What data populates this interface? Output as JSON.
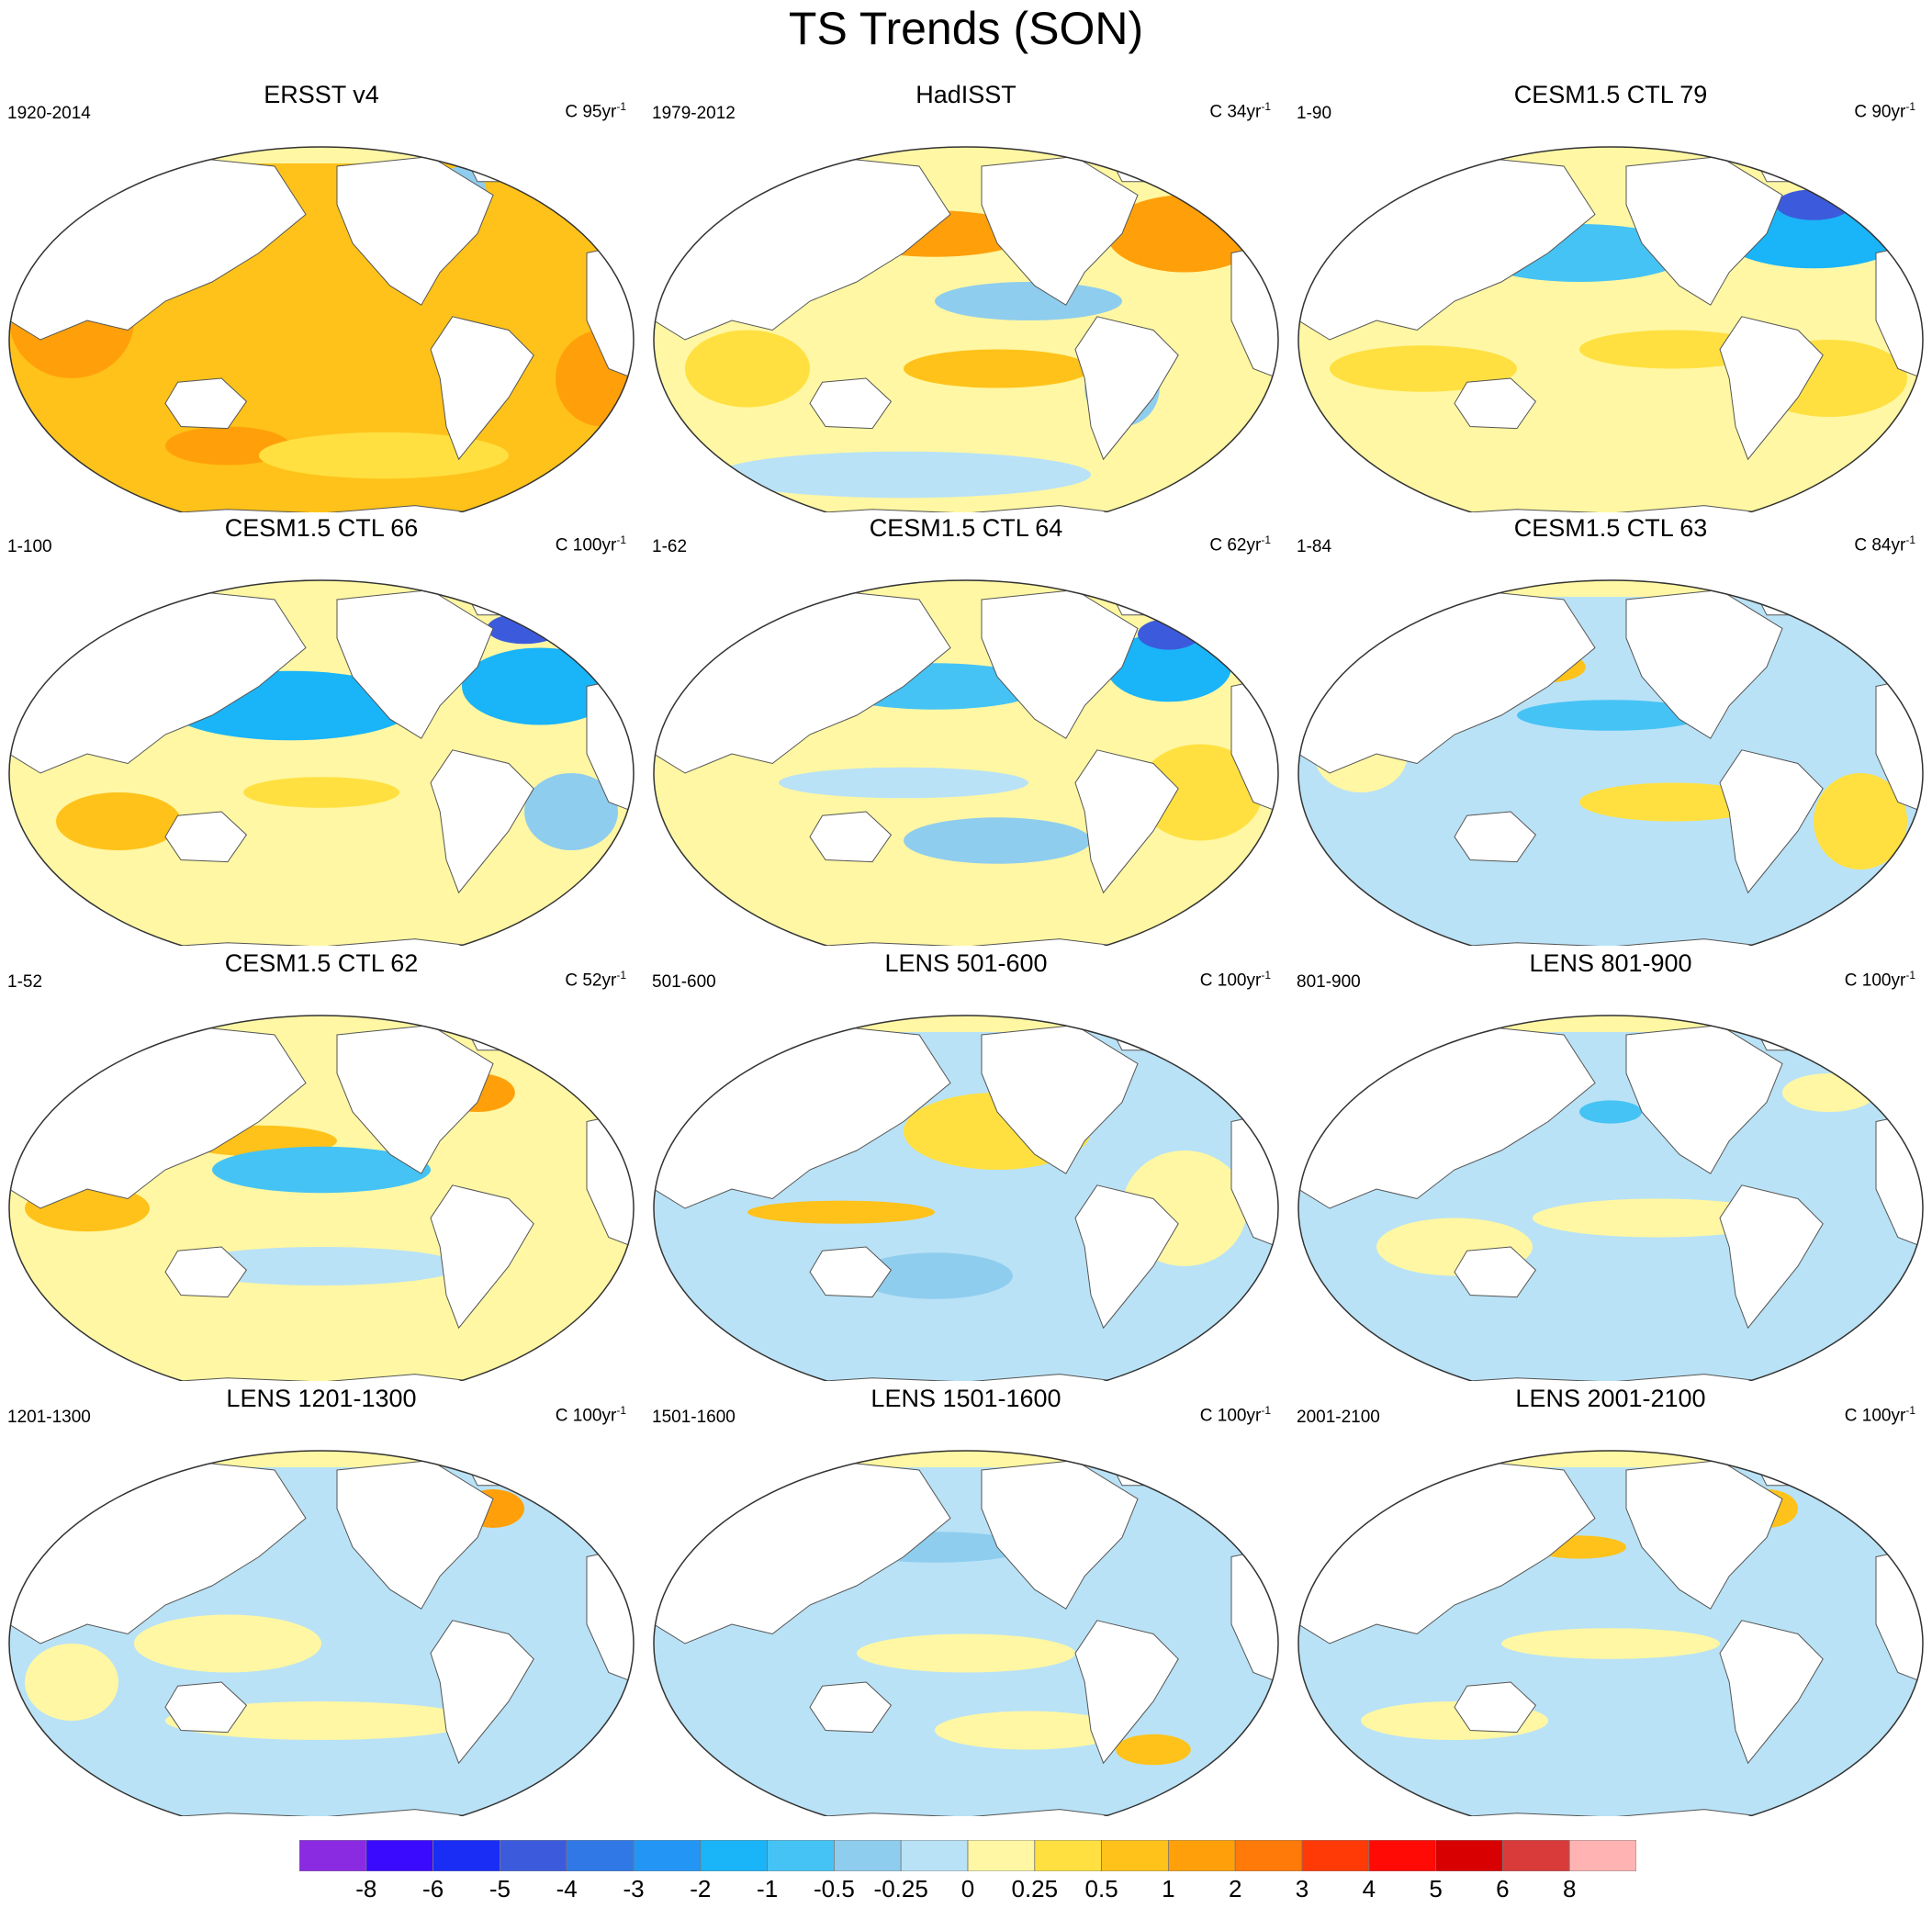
{
  "title": "TS Trends (SON)",
  "panels": [
    {
      "title": "ERSST v4",
      "period": "1920-2014",
      "units_prefix": "C 95yr",
      "units_exp": "-1",
      "scheme": 0
    },
    {
      "title": "HadISST",
      "period": "1979-2012",
      "units_prefix": "C 34yr",
      "units_exp": "-1",
      "scheme": 1
    },
    {
      "title": "CESM1.5 CTL 79",
      "period": "1-90",
      "units_prefix": "C 90yr",
      "units_exp": "-1",
      "scheme": 2
    },
    {
      "title": "CESM1.5 CTL 66",
      "period": "1-100",
      "units_prefix": "C 100yr",
      "units_exp": "-1",
      "scheme": 3
    },
    {
      "title": "CESM1.5 CTL 64",
      "period": "1-62",
      "units_prefix": "C 62yr",
      "units_exp": "-1",
      "scheme": 4
    },
    {
      "title": "CESM1.5 CTL 63",
      "period": "1-84",
      "units_prefix": "C 84yr",
      "units_exp": "-1",
      "scheme": 5
    },
    {
      "title": "CESM1.5 CTL 62",
      "period": "1-52",
      "units_prefix": "C 52yr",
      "units_exp": "-1",
      "scheme": 6
    },
    {
      "title": "LENS 501-600",
      "period": "501-600",
      "units_prefix": "C 100yr",
      "units_exp": "-1",
      "scheme": 7
    },
    {
      "title": "LENS 801-900",
      "period": "801-900",
      "units_prefix": "C 100yr",
      "units_exp": "-1",
      "scheme": 8
    },
    {
      "title": "LENS 1201-1300",
      "period": "1201-1300",
      "units_prefix": "C 100yr",
      "units_exp": "-1",
      "scheme": 9
    },
    {
      "title": "LENS 1501-1600",
      "period": "1501-1600",
      "units_prefix": "C 100yr",
      "units_exp": "-1",
      "scheme": 10
    },
    {
      "title": "LENS 2001-2100",
      "period": "2001-2100",
      "units_prefix": "C 100yr",
      "units_exp": "-1",
      "scheme": 11
    }
  ],
  "colorbar": {
    "colors": [
      "#8a2be2",
      "#3a0aff",
      "#1a2df5",
      "#3c5bdc",
      "#2f78e6",
      "#2396f5",
      "#1ab4f8",
      "#46c3f5",
      "#8fcdee",
      "#b9e2f6",
      "#fff7a3",
      "#ffe040",
      "#ffc21a",
      "#ffa00a",
      "#ff7a08",
      "#ff3a06",
      "#ff0a04",
      "#d80000",
      "#d93b3b",
      "#ffb3b3"
    ],
    "labels": [
      "-8",
      "-6",
      "-5",
      "-4",
      "-3",
      "-2",
      "-1",
      "-0.5",
      "-0.25",
      "0",
      "0.25",
      "0.5",
      "1",
      "2",
      "3",
      "4",
      "5",
      "6",
      "8"
    ]
  }
}
